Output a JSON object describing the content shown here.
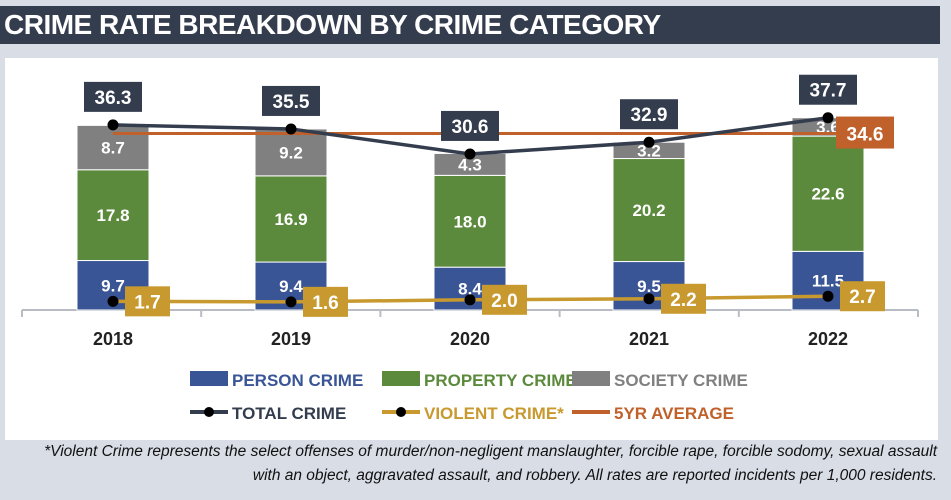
{
  "title": "CRIME RATE BREAKDOWN BY CRIME CATEGORY",
  "footnote": "*Violent Crime represents the select offenses of murder/non-negligent manslaughter, forcible rape, forcible sodomy, sexual assault with an object, aggravated assault, and robbery. All rates are reported incidents per 1,000 residents.",
  "chart_data": {
    "type": "bar",
    "stacked": true,
    "categories": [
      "2018",
      "2019",
      "2020",
      "2021",
      "2022"
    ],
    "series": [
      {
        "name": "PERSON CRIME",
        "kind": "bar",
        "color": "#3a5596",
        "values": [
          9.7,
          9.4,
          8.4,
          9.5,
          11.5
        ]
      },
      {
        "name": "PROPERTY CRIME",
        "kind": "bar",
        "color": "#5c8a3c",
        "values": [
          17.8,
          16.9,
          18.0,
          20.2,
          22.6
        ]
      },
      {
        "name": "SOCIETY CRIME",
        "kind": "bar",
        "color": "#808080",
        "values": [
          8.7,
          9.2,
          4.3,
          3.2,
          3.6
        ]
      },
      {
        "name": "TOTAL CRIME",
        "kind": "line",
        "color": "#343d4e",
        "values": [
          36.3,
          35.5,
          30.6,
          32.9,
          37.7
        ]
      },
      {
        "name": "VIOLENT CRIME*",
        "kind": "line",
        "color": "#c8992e",
        "values": [
          1.7,
          1.6,
          2.0,
          2.2,
          2.7
        ]
      },
      {
        "name": "5YR AVERAGE",
        "kind": "line",
        "color": "#c0602a",
        "values": [
          34.6,
          34.6,
          34.6,
          34.6,
          34.6
        ],
        "label": "34.6"
      }
    ],
    "ylim": [
      0,
      40
    ],
    "grid": false,
    "legend": "bottom"
  }
}
